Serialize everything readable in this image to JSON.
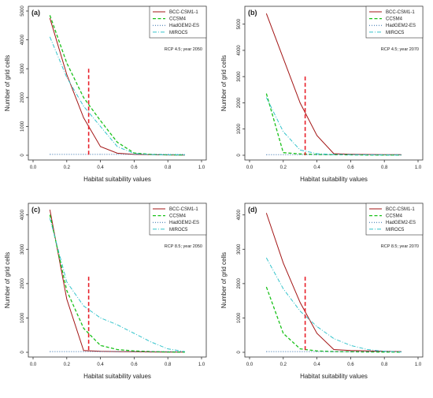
{
  "colors": {
    "BCC-CSM1-1": "#a31515",
    "CCSM4": "#19c119",
    "HadGEM2-ES": "#2a6aa8",
    "MIROC5": "#35c4cc",
    "threshold": "#e8202a"
  },
  "chart_data": [
    {
      "type": "line",
      "panel": "(a)",
      "subtitle": "RCP 4.5; year 2050",
      "xlabel": "Habitat suitability values",
      "ylabel": "Number of grid cells",
      "xlim": [
        0.0,
        1.0
      ],
      "ylim": [
        0,
        5000
      ],
      "xticks": [
        "0.0",
        "0.2",
        "0.4",
        "0.6",
        "0.8",
        "1.0"
      ],
      "yticks": [
        0,
        1000,
        2000,
        3000,
        4000,
        5000
      ],
      "legend_position": "top-right",
      "series": [
        {
          "name": "BCC-CSM1-1",
          "x": [
            0.1,
            0.2,
            0.3,
            0.4,
            0.5,
            0.6,
            0.7,
            0.8,
            0.9
          ],
          "values": [
            4750,
            2800,
            1300,
            300,
            70,
            30,
            20,
            10,
            5
          ]
        },
        {
          "name": "CCSM4",
          "x": [
            0.1,
            0.2,
            0.3,
            0.4,
            0.5,
            0.6,
            0.7,
            0.8,
            0.9
          ],
          "values": [
            4850,
            3200,
            2000,
            1200,
            450,
            80,
            30,
            15,
            10
          ]
        },
        {
          "name": "HadGEM2-ES",
          "x": [
            0.1,
            0.2,
            0.3,
            0.4,
            0.5,
            0.6,
            0.7,
            0.8,
            0.9
          ],
          "values": [
            30,
            30,
            30,
            30,
            30,
            30,
            30,
            30,
            30
          ]
        },
        {
          "name": "MIROC5",
          "x": [
            0.1,
            0.2,
            0.3,
            0.4,
            0.5,
            0.6,
            0.7,
            0.8,
            0.9
          ],
          "values": [
            4100,
            2700,
            1700,
            1000,
            300,
            60,
            25,
            15,
            10
          ]
        }
      ],
      "threshold": {
        "x": 0.33,
        "y_top": 3000
      }
    },
    {
      "type": "line",
      "panel": "(b)",
      "subtitle": "RCP 4.5; year 2070",
      "xlabel": "Habitat suitability values",
      "ylabel": "Number of grid cells",
      "xlim": [
        0.0,
        1.0
      ],
      "ylim": [
        0,
        5500
      ],
      "xticks": [
        "0.0",
        "0.2",
        "0.4",
        "0.6",
        "0.8",
        "1.0"
      ],
      "yticks": [
        0,
        1000,
        2000,
        3000,
        4000,
        5000
      ],
      "legend_position": "top-right",
      "series": [
        {
          "name": "BCC-CSM1-1",
          "x": [
            0.1,
            0.2,
            0.3,
            0.4,
            0.5,
            0.6,
            0.7,
            0.8,
            0.9
          ],
          "values": [
            5400,
            3700,
            2000,
            750,
            60,
            40,
            30,
            25,
            20
          ]
        },
        {
          "name": "CCSM4",
          "x": [
            0.1,
            0.2,
            0.3,
            0.4,
            0.5,
            0.6,
            0.7,
            0.8,
            0.9
          ],
          "values": [
            2350,
            100,
            50,
            30,
            20,
            15,
            10,
            10,
            5
          ]
        },
        {
          "name": "HadGEM2-ES",
          "x": [
            0.1,
            0.2,
            0.3,
            0.4,
            0.5,
            0.6,
            0.7,
            0.8,
            0.9
          ],
          "values": [
            20,
            20,
            20,
            20,
            20,
            20,
            20,
            20,
            20
          ]
        },
        {
          "name": "MIROC5",
          "x": [
            0.1,
            0.2,
            0.3,
            0.4,
            0.5,
            0.6,
            0.7,
            0.8,
            0.9
          ],
          "values": [
            2200,
            900,
            200,
            60,
            30,
            20,
            15,
            10,
            5
          ]
        }
      ],
      "threshold": {
        "x": 0.33,
        "y_top": 3000
      }
    },
    {
      "type": "line",
      "panel": "(c)",
      "subtitle": "RCP 8.5; year 2050",
      "xlabel": "Habitat suitability values",
      "ylabel": "Number of grid cells",
      "xlim": [
        0.0,
        1.0
      ],
      "ylim": [
        0,
        4200
      ],
      "xticks": [
        "0.0",
        "0.2",
        "0.4",
        "0.6",
        "0.8",
        "1.0"
      ],
      "yticks": [
        0,
        1000,
        2000,
        3000,
        4000
      ],
      "legend_position": "top-right",
      "series": [
        {
          "name": "BCC-CSM1-1",
          "x": [
            0.1,
            0.2,
            0.3,
            0.4,
            0.5,
            0.6,
            0.7,
            0.8,
            0.9
          ],
          "values": [
            4150,
            1550,
            50,
            30,
            20,
            15,
            10,
            8,
            5
          ]
        },
        {
          "name": "CCSM4",
          "x": [
            0.1,
            0.2,
            0.3,
            0.4,
            0.5,
            0.6,
            0.7,
            0.8,
            0.9
          ],
          "values": [
            4000,
            1800,
            700,
            200,
            80,
            40,
            20,
            10,
            5
          ]
        },
        {
          "name": "HadGEM2-ES",
          "x": [
            0.1,
            0.2,
            0.3,
            0.4,
            0.5,
            0.6,
            0.7,
            0.8,
            0.9
          ],
          "values": [
            20,
            20,
            20,
            20,
            20,
            20,
            20,
            20,
            20
          ]
        },
        {
          "name": "MIROC5",
          "x": [
            0.1,
            0.2,
            0.3,
            0.4,
            0.5,
            0.6,
            0.7,
            0.8,
            0.9
          ],
          "values": [
            3900,
            2050,
            1350,
            1000,
            800,
            550,
            300,
            100,
            20
          ]
        }
      ],
      "threshold": {
        "x": 0.33,
        "y_top": 2200
      }
    },
    {
      "type": "line",
      "panel": "(d)",
      "subtitle": "RCP 8.5; year 2070",
      "xlabel": "Habitat suitability values",
      "ylabel": "Number of grid cells",
      "xlim": [
        0.0,
        1.0
      ],
      "ylim": [
        0,
        4200
      ],
      "xticks": [
        "0.0",
        "0.2",
        "0.4",
        "0.6",
        "0.8",
        "1.0"
      ],
      "yticks": [
        0,
        1000,
        2000,
        3000,
        4000
      ],
      "legend_position": "top-right",
      "series": [
        {
          "name": "BCC-CSM1-1",
          "x": [
            0.1,
            0.2,
            0.3,
            0.4,
            0.5,
            0.6,
            0.7,
            0.8,
            0.9
          ],
          "values": [
            4050,
            2600,
            1450,
            550,
            80,
            50,
            40,
            30,
            20
          ]
        },
        {
          "name": "CCSM4",
          "x": [
            0.1,
            0.2,
            0.3,
            0.4,
            0.5,
            0.6,
            0.7,
            0.8,
            0.9
          ],
          "values": [
            1900,
            550,
            100,
            40,
            20,
            15,
            10,
            8,
            5
          ]
        },
        {
          "name": "HadGEM2-ES",
          "x": [
            0.1,
            0.2,
            0.3,
            0.4,
            0.5,
            0.6,
            0.7,
            0.8,
            0.9
          ],
          "values": [
            20,
            20,
            20,
            20,
            20,
            20,
            20,
            20,
            20
          ]
        },
        {
          "name": "MIROC5",
          "x": [
            0.1,
            0.2,
            0.3,
            0.4,
            0.5,
            0.6,
            0.7,
            0.8,
            0.9
          ],
          "values": [
            2750,
            1850,
            1200,
            750,
            400,
            200,
            80,
            30,
            10
          ]
        }
      ],
      "threshold": {
        "x": 0.33,
        "y_top": 2200
      }
    }
  ]
}
